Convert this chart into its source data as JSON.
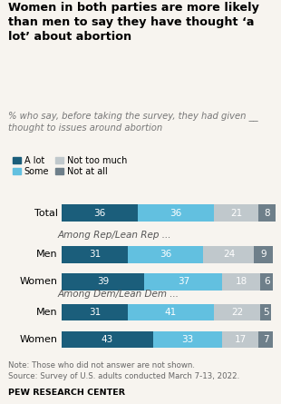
{
  "title": "Women in both parties are more likely\nthan men to say they have thought ‘a\nlot’ about abortion",
  "subtitle": "% who say, before taking the survey, they had given __\nthought to issues around abortion",
  "categories": [
    "Total",
    "Rep Men",
    "Rep Women",
    "Dem Men",
    "Dem Women"
  ],
  "row_labels": [
    "Total",
    "Men",
    "Women",
    "Men",
    "Women"
  ],
  "group_label_1": "Among Rep/Lean Rep ...",
  "group_label_2": "Among Dem/Lean Dem ...",
  "data": {
    "a_lot": [
      36,
      31,
      39,
      31,
      43
    ],
    "some": [
      36,
      36,
      37,
      41,
      33
    ],
    "not_much": [
      21,
      24,
      18,
      22,
      17
    ],
    "not_at_all": [
      8,
      9,
      6,
      5,
      7
    ]
  },
  "colors": {
    "a_lot": "#1b5e7b",
    "some": "#62c0e0",
    "not_much": "#c0c8cc",
    "not_at_all": "#6e7f8a"
  },
  "legend_labels": [
    "A lot",
    "Some",
    "Not too much",
    "Not at all"
  ],
  "note": "Note: Those who did not answer are not shown.\nSource: Survey of U.S. adults conducted March 7-13, 2022.",
  "source": "PEW RESEARCH CENTER",
  "bg_color": "#f7f4ef"
}
